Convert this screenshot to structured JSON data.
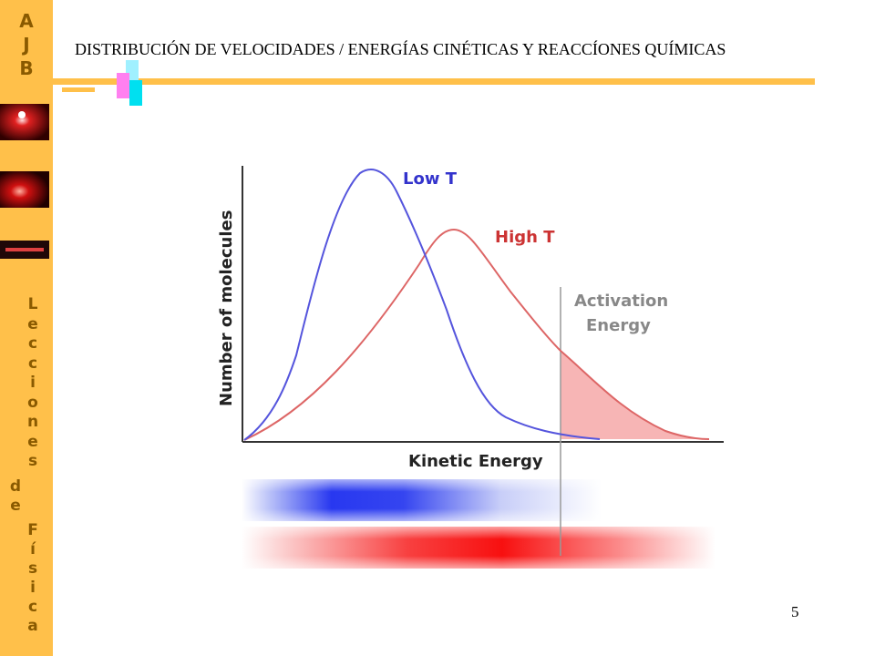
{
  "header": {
    "title": "DISTRIBUCIÓN DE VELOCIDADES / ENERGÍAS CINÉTICAS Y REACCÍONES QUÍMICAS"
  },
  "sidebar": {
    "brand_letters": [
      "A",
      "J",
      "B"
    ],
    "vertical_text_1": [
      "L",
      "e",
      "c",
      "c",
      "i",
      "o",
      "n",
      "e",
      "s"
    ],
    "vertical_text_2": [
      "d",
      "e"
    ],
    "vertical_text_3": [
      "F",
      "í",
      "s",
      "i",
      "c",
      "a"
    ]
  },
  "diagram": {
    "ylabel": "Number of molecules",
    "xlabel": "Kinetic Energy",
    "low_label": "Low T",
    "high_label": "High T",
    "activation_label_1": "Activation",
    "activation_label_2": "Energy",
    "colors": {
      "low": "#5555dd",
      "high": "#dd6666",
      "shade": "#f7b5b5",
      "activation_line": "#999999",
      "low_text": "#3333cc",
      "high_text": "#cc3333",
      "activation_text": "#888888"
    }
  },
  "footer": {
    "page_number": "5"
  }
}
